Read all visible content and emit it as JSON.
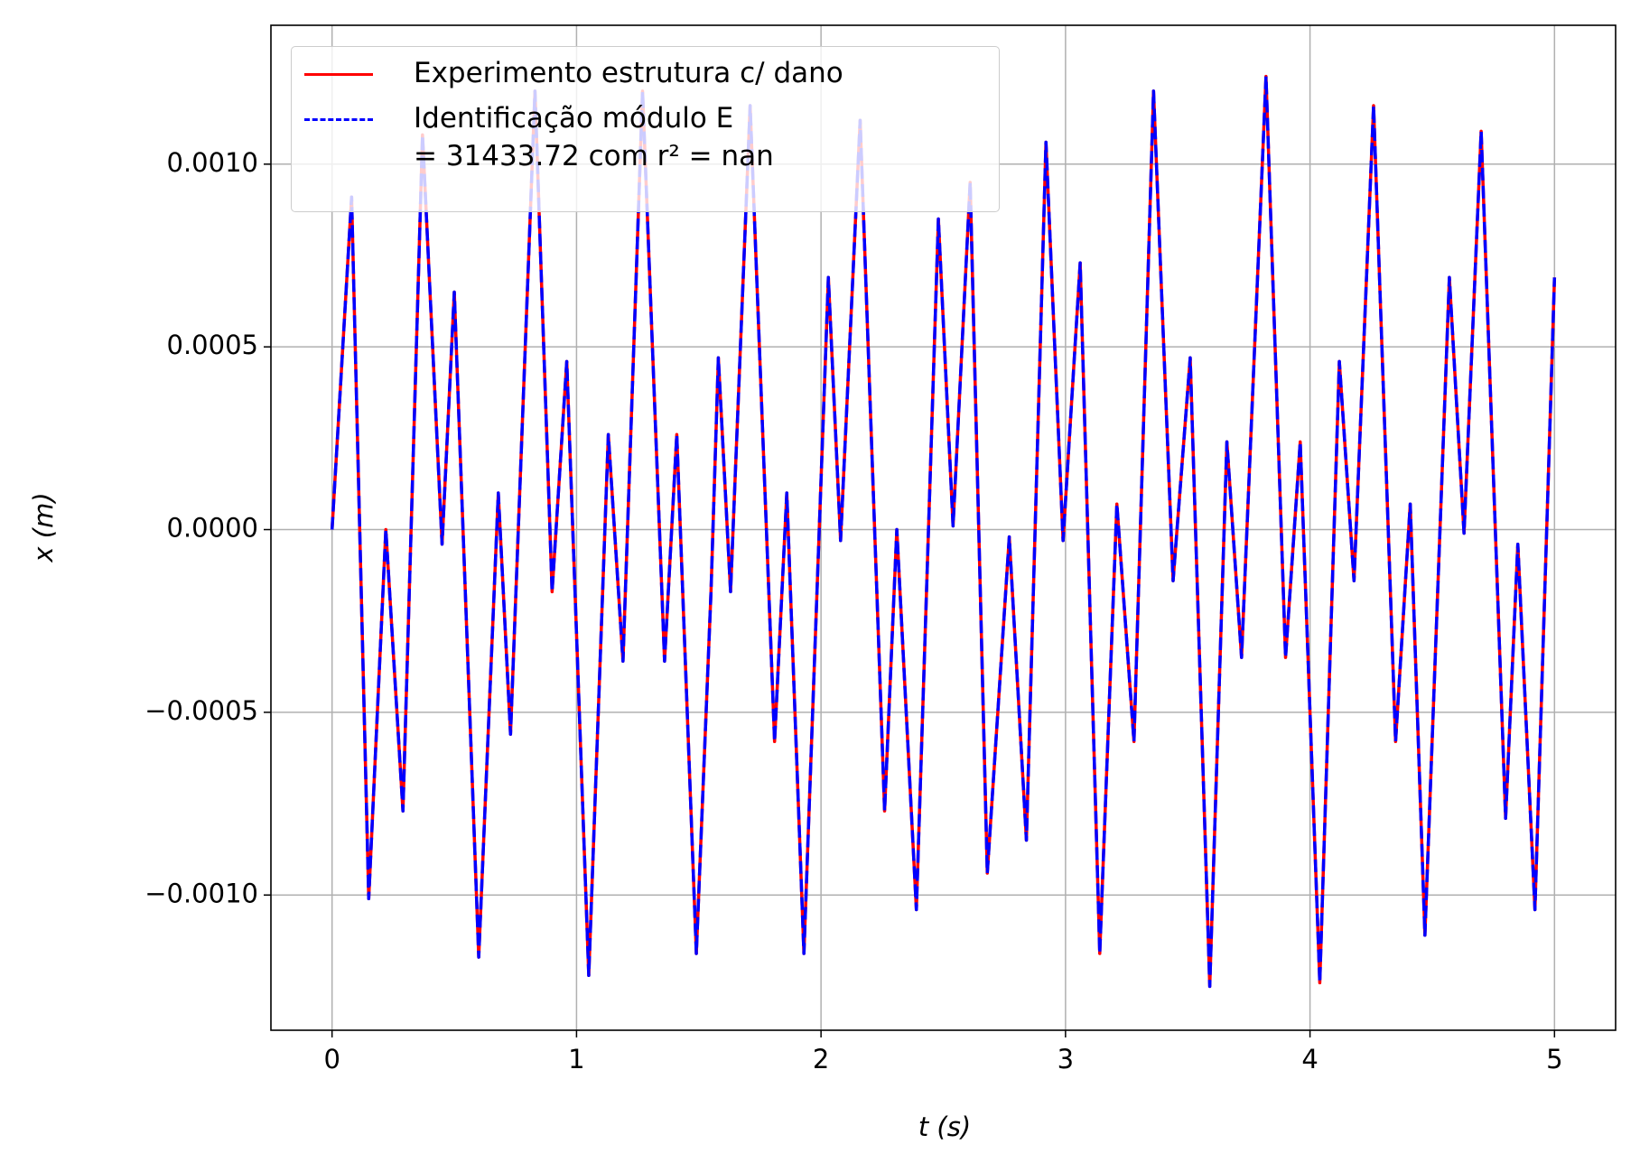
{
  "chart_data": {
    "type": "line",
    "xlabel": "t (s)",
    "ylabel": "x (m)",
    "x": [
      0,
      0.08,
      0.15,
      0.22,
      0.29,
      0.37,
      0.45,
      0.5,
      0.6,
      0.68,
      0.73,
      0.83,
      0.9,
      0.96,
      1.05,
      1.13,
      1.19,
      1.27,
      1.36,
      1.41,
      1.49,
      1.55,
      1.58,
      1.63,
      1.71,
      1.81,
      1.86,
      1.93,
      2.03,
      2.08,
      2.16,
      2.26,
      2.31,
      2.39,
      2.48,
      2.54,
      2.61,
      2.68,
      2.77,
      2.84,
      2.92,
      2.99,
      3.06,
      3.14,
      3.21,
      3.28,
      3.36,
      3.44,
      3.51,
      3.59,
      3.66,
      3.72,
      3.82,
      3.9,
      3.96,
      4.04,
      4.12,
      4.18,
      4.26,
      4.35,
      4.41,
      4.47,
      4.57,
      4.63,
      4.7,
      4.8,
      4.85,
      4.92,
      5.0
    ],
    "series": [
      {
        "name": "Experimento estrutura c/ dano",
        "color": "#ff0000",
        "dash": false,
        "values": [
          0,
          0.00091,
          -0.00101,
          0.0,
          -0.00077,
          0.00108,
          -4e-05,
          0.00065,
          -0.00117,
          0.0001,
          -0.00056,
          0.0012,
          -0.00017,
          0.00046,
          -0.00122,
          0.00026,
          -0.00036,
          0.0012,
          -0.00036,
          0.00026,
          -0.00116,
          -0.00017,
          0.00047,
          -0.00017,
          0.00116,
          -0.00058,
          0.0001,
          -0.00116,
          0.00069,
          -3e-05,
          0.00112,
          -0.00077,
          0.0,
          -0.00104,
          0.00085,
          1e-05,
          0.00095,
          -0.00094,
          -2e-05,
          -0.00085,
          0.00106,
          -3e-05,
          0.00073,
          -0.00116,
          7e-05,
          -0.00058,
          0.0012,
          -0.00014,
          0.00047,
          -0.00125,
          0.00024,
          -0.00035,
          0.00124,
          -0.00035,
          0.00024,
          -0.00124,
          0.00046,
          -0.00014,
          0.00116,
          -0.00058,
          7e-05,
          -0.00111,
          0.00069,
          -1e-05,
          0.00109,
          -0.00079,
          -4e-05,
          -0.00104,
          0.00069
        ]
      },
      {
        "name": "Identificação módulo E\n = 31433.72 com r² = nan",
        "color": "#0000ff",
        "dash": true,
        "values": [
          0,
          0.00091,
          -0.00101,
          0.0,
          -0.00077,
          0.00108,
          -4e-05,
          0.00065,
          -0.00117,
          0.0001,
          -0.00056,
          0.0012,
          -0.00017,
          0.00046,
          -0.00122,
          0.00026,
          -0.00036,
          0.0012,
          -0.00036,
          0.00026,
          -0.00116,
          -0.00017,
          0.00047,
          -0.00017,
          0.00116,
          -0.00058,
          0.0001,
          -0.00116,
          0.00069,
          -3e-05,
          0.00112,
          -0.00077,
          0.0,
          -0.00104,
          0.00085,
          1e-05,
          0.00095,
          -0.00094,
          -2e-05,
          -0.00085,
          0.00106,
          -3e-05,
          0.00073,
          -0.00116,
          7e-05,
          -0.00058,
          0.0012,
          -0.00014,
          0.00047,
          -0.00125,
          0.00024,
          -0.00035,
          0.00124,
          -0.00035,
          0.00024,
          -0.00124,
          0.00046,
          -0.00014,
          0.00116,
          -0.00058,
          7e-05,
          -0.00111,
          0.00069,
          -1e-05,
          0.00109,
          -0.00079,
          -4e-05,
          -0.00104,
          0.00069
        ]
      }
    ],
    "xlim": [
      -0.25,
      5.25
    ],
    "xticks": [
      0,
      1,
      2,
      3,
      4,
      5
    ],
    "ylim": [
      -0.00137,
      0.00138
    ],
    "yticks": [
      {
        "value": -0.001,
        "label": "−0.0010"
      },
      {
        "value": -0.0005,
        "label": "−0.0005"
      },
      {
        "value": 0,
        "label": "0.0000"
      },
      {
        "value": 0.0005,
        "label": "0.0005"
      },
      {
        "value": 0.001,
        "label": "0.0010"
      }
    ],
    "grid": true,
    "legend": "upper left"
  }
}
